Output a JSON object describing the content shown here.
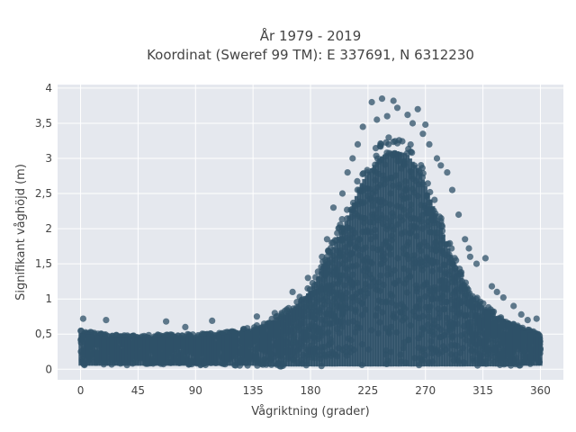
{
  "chart_data": {
    "type": "scatter",
    "title_lines": [
      "År 1979 - 2019",
      "Koordinat (Sweref 99 TM): E 337691, N 6312230"
    ],
    "xlabel": "Vågriktning (grader)",
    "ylabel": "Signifikant våghöjd (m)",
    "xlim": [
      -18,
      378
    ],
    "ylim": [
      -0.15,
      4.05
    ],
    "x_ticks": [
      0,
      45,
      90,
      135,
      180,
      225,
      270,
      315,
      360
    ],
    "y_ticks": [
      0,
      0.5,
      1,
      1.5,
      2,
      2.5,
      3,
      3.5,
      4
    ],
    "y_tick_labels": [
      "0",
      "0,5",
      "1",
      "1,5",
      "2",
      "2,5",
      "3",
      "3,5",
      "4"
    ],
    "grid": true,
    "marker_color": "#2f5168",
    "plot_background": "#e5e8ee",
    "envelope": {
      "direction_deg": [
        0,
        20,
        45,
        70,
        90,
        110,
        135,
        150,
        165,
        180,
        195,
        210,
        220,
        225,
        235,
        245,
        255,
        265,
        275,
        285,
        295,
        305,
        315,
        325,
        335,
        345,
        355,
        360
      ],
      "lower_m": [
        0.05,
        0.05,
        0.05,
        0.05,
        0.05,
        0.05,
        0.05,
        0.04,
        0.04,
        0.04,
        0.04,
        0.04,
        0.04,
        0.04,
        0.04,
        0.04,
        0.04,
        0.04,
        0.04,
        0.04,
        0.04,
        0.04,
        0.04,
        0.04,
        0.04,
        0.05,
        0.05,
        0.05
      ],
      "upper_m": [
        0.55,
        0.5,
        0.48,
        0.5,
        0.5,
        0.52,
        0.6,
        0.72,
        0.9,
        1.2,
        1.75,
        2.35,
        2.85,
        3.0,
        3.25,
        3.35,
        3.3,
        3.05,
        2.55,
        2.0,
        1.5,
        1.15,
        0.95,
        0.8,
        0.7,
        0.6,
        0.55,
        0.5
      ]
    },
    "outliers": [
      {
        "x": 236,
        "y": 3.85
      },
      {
        "x": 245,
        "y": 3.82
      },
      {
        "x": 228,
        "y": 3.8
      },
      {
        "x": 264,
        "y": 3.7
      },
      {
        "x": 248,
        "y": 3.72
      },
      {
        "x": 240,
        "y": 3.6
      },
      {
        "x": 232,
        "y": 3.55
      },
      {
        "x": 256,
        "y": 3.62
      },
      {
        "x": 221,
        "y": 3.45
      },
      {
        "x": 270,
        "y": 3.48
      },
      {
        "x": 260,
        "y": 3.5
      },
      {
        "x": 268,
        "y": 3.35
      },
      {
        "x": 217,
        "y": 3.2
      },
      {
        "x": 273,
        "y": 3.2
      },
      {
        "x": 279,
        "y": 3.0
      },
      {
        "x": 282,
        "y": 2.9
      },
      {
        "x": 287,
        "y": 2.8
      },
      {
        "x": 213,
        "y": 3.0
      },
      {
        "x": 209,
        "y": 2.8
      },
      {
        "x": 205,
        "y": 2.5
      },
      {
        "x": 291,
        "y": 2.55
      },
      {
        "x": 296,
        "y": 2.2
      },
      {
        "x": 198,
        "y": 2.3
      },
      {
        "x": 301,
        "y": 1.85
      },
      {
        "x": 304,
        "y": 1.72
      },
      {
        "x": 305,
        "y": 1.6
      },
      {
        "x": 310,
        "y": 1.5
      },
      {
        "x": 317,
        "y": 1.58
      },
      {
        "x": 322,
        "y": 1.18
      },
      {
        "x": 326,
        "y": 1.1
      },
      {
        "x": 331,
        "y": 1.02
      },
      {
        "x": 339,
        "y": 0.9
      },
      {
        "x": 345,
        "y": 0.78
      },
      {
        "x": 350,
        "y": 0.7
      },
      {
        "x": 357,
        "y": 0.72
      },
      {
        "x": 2,
        "y": 0.72
      },
      {
        "x": 20,
        "y": 0.7
      },
      {
        "x": 67,
        "y": 0.68
      },
      {
        "x": 103,
        "y": 0.69
      },
      {
        "x": 82,
        "y": 0.6
      },
      {
        "x": 138,
        "y": 0.75
      },
      {
        "x": 152,
        "y": 0.8
      },
      {
        "x": 166,
        "y": 1.1
      },
      {
        "x": 178,
        "y": 1.3
      },
      {
        "x": 189,
        "y": 1.6
      },
      {
        "x": 193,
        "y": 1.85
      }
    ]
  }
}
